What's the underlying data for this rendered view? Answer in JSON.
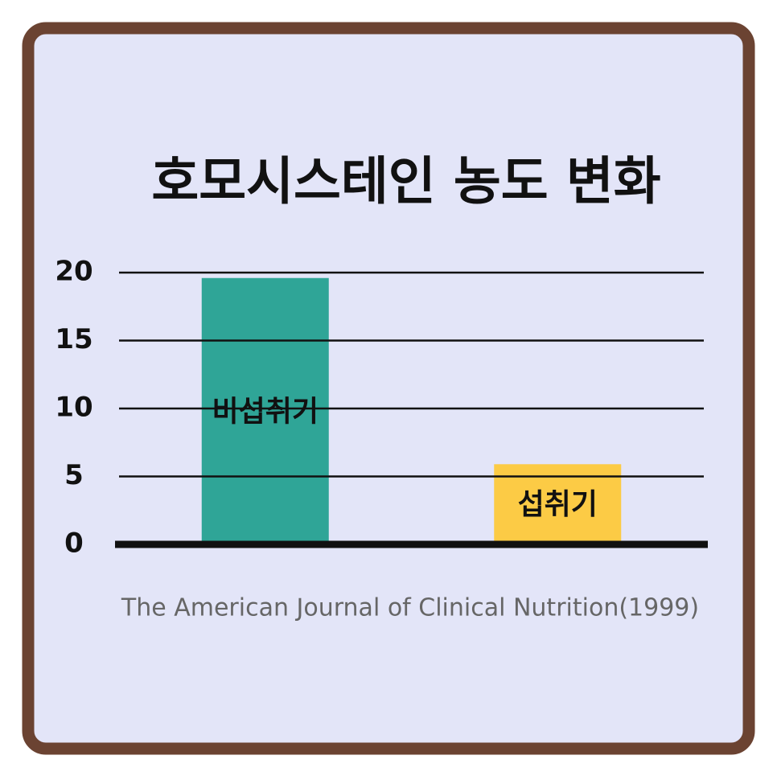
{
  "chart_data": {
    "type": "bar",
    "title": "호모시스테인 농도 변화",
    "categories": [
      "비섭취기",
      "섭취기"
    ],
    "values": [
      19.6,
      5.9
    ],
    "colors": [
      "#2fa597",
      "#fccb45"
    ],
    "ylim": [
      0,
      20
    ],
    "yticks": [
      0,
      5,
      10,
      15,
      20
    ],
    "grid": true,
    "source": "The American Journal of Clinical Nutrition(1999)"
  }
}
